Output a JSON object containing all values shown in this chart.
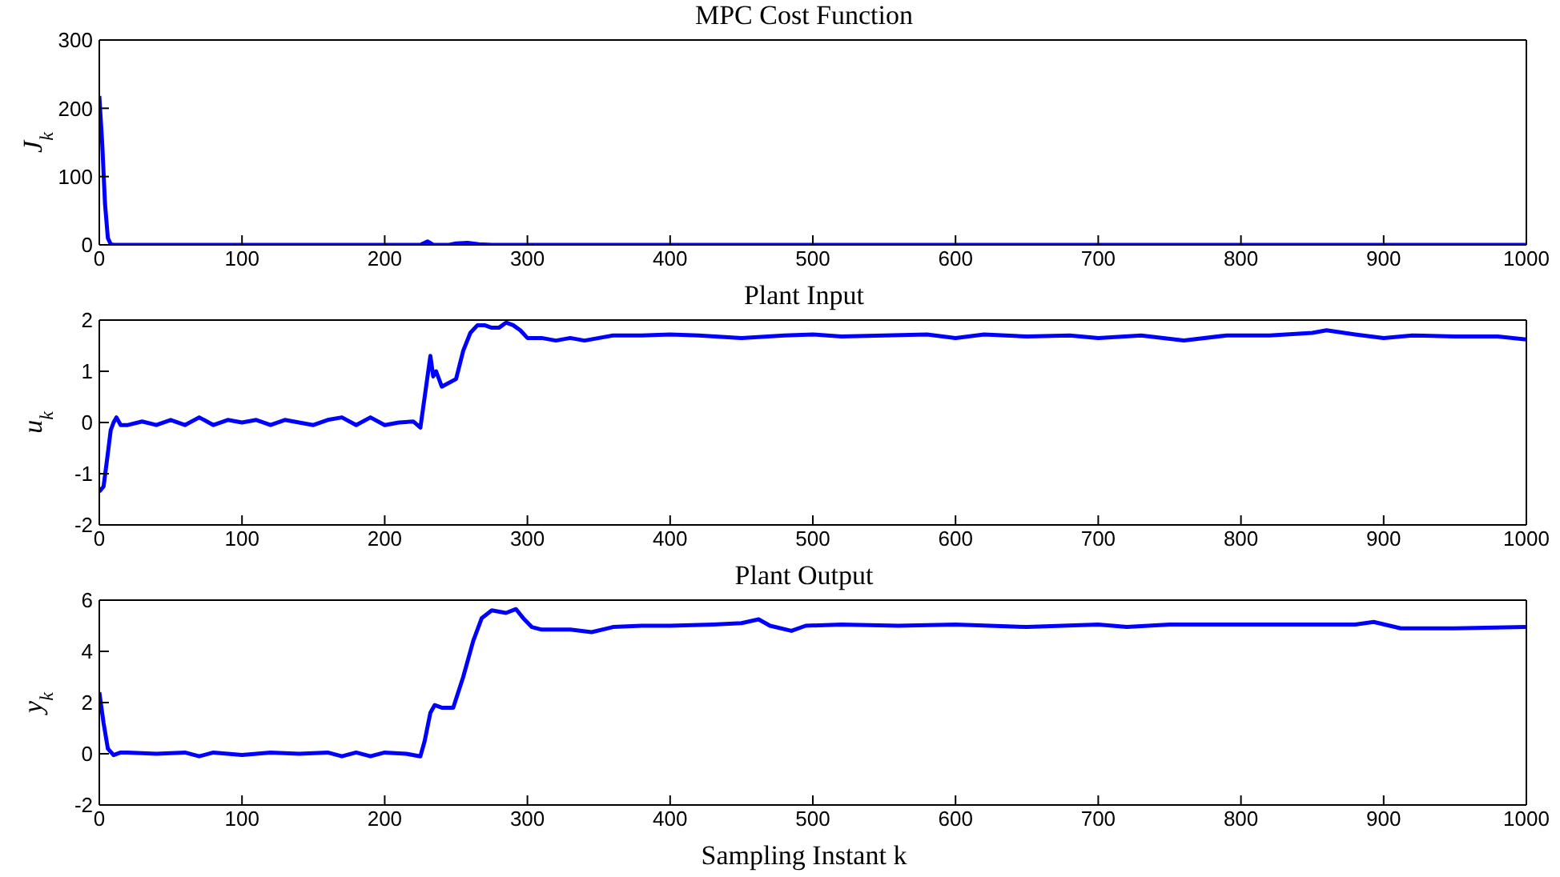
{
  "chart_data": [
    {
      "type": "line",
      "title": "MPC Cost Function",
      "ylabel": "J$_{k}$",
      "xlim": [
        0,
        1000
      ],
      "xticks": [
        0,
        100,
        200,
        300,
        400,
        500,
        600,
        700,
        800,
        900,
        1000
      ],
      "ylim": [
        0,
        300
      ],
      "yticks": [
        0,
        100,
        200,
        300
      ],
      "series": [
        {
          "color": "#0000ff",
          "x": [
            0,
            2,
            4,
            6,
            8,
            10,
            225,
            230,
            234,
            245,
            250,
            258,
            266,
            275,
            1000
          ],
          "values": [
            218,
            150,
            60,
            10,
            1,
            0,
            0,
            5,
            0,
            0,
            2,
            3,
            1,
            0,
            0
          ]
        }
      ]
    },
    {
      "type": "line",
      "title": "Plant Input",
      "ylabel": "u$_{k}$",
      "xlim": [
        0,
        1000
      ],
      "xticks": [
        0,
        100,
        200,
        300,
        400,
        500,
        600,
        700,
        800,
        900,
        1000
      ],
      "ylim": [
        -2,
        2
      ],
      "yticks": [
        -2,
        -1,
        0,
        1,
        2
      ],
      "series": [
        {
          "color": "#0000ff",
          "x": [
            0,
            3,
            6,
            8,
            10,
            12,
            15,
            20,
            30,
            40,
            50,
            60,
            70,
            80,
            90,
            100,
            110,
            120,
            130,
            140,
            150,
            160,
            170,
            180,
            190,
            200,
            210,
            220,
            225,
            228,
            232,
            234,
            236,
            240,
            250,
            255,
            260,
            265,
            270,
            275,
            280,
            285,
            290,
            295,
            300,
            310,
            320,
            330,
            340,
            360,
            380,
            400,
            420,
            450,
            480,
            500,
            520,
            550,
            580,
            600,
            620,
            650,
            680,
            700,
            730,
            760,
            790,
            820,
            850,
            860,
            880,
            900,
            920,
            950,
            980,
            1000
          ],
          "values": [
            -1.35,
            -1.25,
            -0.6,
            -0.15,
            0,
            0.1,
            -0.05,
            -0.05,
            0.02,
            -0.05,
            0.05,
            -0.05,
            0.1,
            -0.05,
            0.05,
            0,
            0.05,
            -0.05,
            0.05,
            0,
            -0.05,
            0.05,
            0.1,
            -0.05,
            0.1,
            -0.05,
            0,
            0.02,
            -0.1,
            0.5,
            1.3,
            0.9,
            1.0,
            0.7,
            0.85,
            1.4,
            1.75,
            1.9,
            1.9,
            1.85,
            1.85,
            1.95,
            1.9,
            1.8,
            1.65,
            1.65,
            1.6,
            1.65,
            1.6,
            1.7,
            1.7,
            1.72,
            1.7,
            1.65,
            1.7,
            1.72,
            1.68,
            1.7,
            1.72,
            1.65,
            1.72,
            1.68,
            1.7,
            1.65,
            1.7,
            1.6,
            1.7,
            1.7,
            1.75,
            1.8,
            1.72,
            1.65,
            1.7,
            1.68,
            1.68,
            1.62
          ]
        }
      ]
    },
    {
      "type": "line",
      "title": "Plant Output",
      "ylabel": "y$_{k}$",
      "xlabel": "Sampling Instant k",
      "xlim": [
        0,
        1000
      ],
      "xticks": [
        0,
        100,
        200,
        300,
        400,
        500,
        600,
        700,
        800,
        900,
        1000
      ],
      "ylim": [
        -2,
        6
      ],
      "yticks": [
        -2,
        0,
        2,
        4,
        6
      ],
      "series": [
        {
          "color": "#0000ff",
          "x": [
            0,
            3,
            6,
            10,
            15,
            20,
            40,
            60,
            70,
            80,
            100,
            120,
            140,
            160,
            170,
            180,
            190,
            200,
            215,
            225,
            228,
            232,
            235,
            240,
            248,
            255,
            262,
            268,
            275,
            285,
            292,
            297,
            303,
            310,
            330,
            345,
            360,
            380,
            400,
            430,
            450,
            462,
            470,
            485,
            495,
            520,
            560,
            600,
            650,
            700,
            720,
            750,
            800,
            850,
            880,
            893,
            912,
            950,
            1000
          ],
          "values": [
            2.4,
            1.2,
            0.2,
            -0.05,
            0.05,
            0.05,
            0,
            0.05,
            -0.1,
            0.05,
            -0.05,
            0.05,
            0,
            0.05,
            -0.1,
            0.05,
            -0.1,
            0.05,
            0,
            -0.1,
            0.5,
            1.6,
            1.9,
            1.8,
            1.8,
            3,
            4.4,
            5.3,
            5.6,
            5.5,
            5.65,
            5.3,
            4.95,
            4.85,
            4.85,
            4.75,
            4.95,
            5.0,
            5.0,
            5.05,
            5.1,
            5.25,
            5.0,
            4.8,
            5.0,
            5.05,
            5.0,
            5.05,
            4.95,
            5.05,
            4.95,
            5.05,
            5.05,
            5.05,
            5.05,
            5.15,
            4.9,
            4.9,
            4.95
          ]
        }
      ]
    }
  ]
}
